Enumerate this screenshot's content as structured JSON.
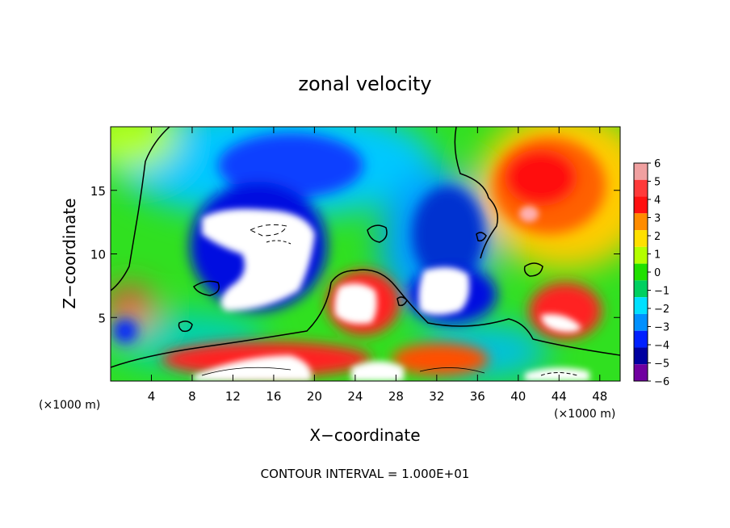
{
  "chart_data": {
    "type": "heatmap",
    "title": "zonal velocity",
    "xlabel": "X−coordinate",
    "ylabel": "Z−coordinate",
    "x_unit_note": "(×1000 m)",
    "z_unit_note": "(×1000 m)",
    "xlim": [
      0,
      50
    ],
    "ylim": [
      0,
      20
    ],
    "x_ticks": [
      4,
      8,
      12,
      16,
      20,
      24,
      28,
      32,
      36,
      40,
      44,
      48
    ],
    "y_ticks": [
      5,
      10,
      15
    ],
    "colorbar": {
      "levels": [
        6,
        5,
        4,
        3,
        2,
        1,
        0,
        -1,
        -2,
        -3,
        -4,
        -5,
        -6
      ],
      "labels": [
        "6",
        "5",
        "4",
        "3",
        "2",
        "1",
        "0",
        "−1",
        "−2",
        "−3",
        "−4",
        "−5",
        "−6"
      ],
      "colors": [
        "#f0a0a0",
        "#ff3a3a",
        "#ff1010",
        "#ff8c00",
        "#ffe000",
        "#b4ff00",
        "#20e000",
        "#00d060",
        "#00e0ff",
        "#0090ff",
        "#0020ff",
        "#0000a0",
        "#7000a0"
      ]
    },
    "field_features": [
      {
        "kind": "strong-negative",
        "x": [
          7,
          21
        ],
        "z": [
          5,
          13.5
        ],
        "value": -7
      },
      {
        "kind": "strong-negative",
        "x": [
          30,
          36
        ],
        "z": [
          5,
          9
        ],
        "value": -7
      },
      {
        "kind": "strong-positive",
        "x": [
          22,
          27
        ],
        "z": [
          4.5,
          8.5
        ],
        "value": 7
      },
      {
        "kind": "strong-positive",
        "x": [
          8,
          22
        ],
        "z": [
          0,
          2.5
        ],
        "value": 7
      },
      {
        "kind": "strong-positive",
        "x": [
          40,
          46
        ],
        "z": [
          3,
          7
        ],
        "value": 7
      },
      {
        "kind": "positive",
        "x": [
          38,
          50
        ],
        "z": [
          10,
          20
        ],
        "value": 5
      },
      {
        "kind": "negative",
        "x": [
          28,
          38
        ],
        "z": [
          8,
          16
        ],
        "value": -4
      }
    ],
    "grid": false,
    "legend_position": "right",
    "footer": "CONTOUR INTERVAL = 1.000E+01"
  }
}
